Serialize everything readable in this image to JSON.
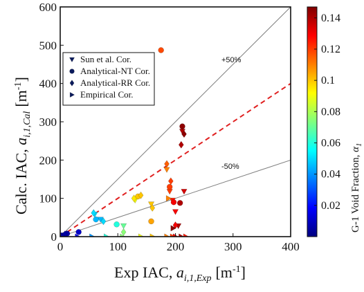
{
  "chart_data": {
    "type": "scatter",
    "xlabel": "Exp IAC,",
    "xlabel_var": "a",
    "xlabel_sub": "i,1,Exp",
    "xlabel_unit_open": "[m",
    "xlabel_unit_exp": "-1",
    "xlabel_unit_close": "]",
    "ylabel": "Calc. IAC,",
    "ylabel_var": "a",
    "ylabel_sub": "i,1,Cal",
    "ylabel_unit_open": "[m",
    "ylabel_unit_exp": "-1",
    "ylabel_unit_close": "]",
    "xlim": [
      0,
      400
    ],
    "ylim": [
      0,
      600
    ],
    "xticks": [
      "0",
      "100",
      "200",
      "300",
      "400"
    ],
    "yticks": [
      "0",
      "100",
      "200",
      "300",
      "400",
      "500",
      "600"
    ],
    "colorbar": {
      "label": "G-1 Void Fraction,",
      "label_var": "α",
      "label_sub": "1",
      "range": [
        0,
        0.147
      ],
      "ticks": [
        "0.02",
        "0.04",
        "0.06",
        "0.08",
        "0.1",
        "0.12",
        "0.14"
      ],
      "colormap": [
        "#00007f",
        "#0000ff",
        "#007fff",
        "#00ffff",
        "#7fff7f",
        "#ffff00",
        "#ff7f00",
        "#ff0000",
        "#7f0000"
      ]
    },
    "reference_lines": [
      {
        "label": "+50%",
        "slope": 1.5,
        "color": "#808080",
        "style": "solid"
      },
      {
        "label": "",
        "slope": 1.0,
        "color": "#e02020",
        "style": "dashed"
      },
      {
        "label": "-50%",
        "slope": 0.5,
        "color": "#808080",
        "style": "solid"
      }
    ],
    "legend": {
      "placement": "upper-left",
      "entries": [
        {
          "label": "Sun et al. Cor.",
          "marker": "triangle-down"
        },
        {
          "label": "Analytical-NT Cor.",
          "marker": "circle"
        },
        {
          "label": "Analytical-RR Cor.",
          "marker": "diamond"
        },
        {
          "label": "Empirical Cor.",
          "marker": "triangle-right"
        }
      ]
    },
    "series": [
      {
        "marker": "triangle-down",
        "points": [
          {
            "x": 5,
            "y": 4,
            "c": 0.005
          },
          {
            "x": 10,
            "y": 5,
            "c": 0.01
          },
          {
            "x": 60,
            "y": 58,
            "c": 0.05
          },
          {
            "x": 70,
            "y": 45,
            "c": 0.045
          },
          {
            "x": 110,
            "y": 28,
            "c": 0.07
          },
          {
            "x": 130,
            "y": 95,
            "c": 0.09
          },
          {
            "x": 158,
            "y": 85,
            "c": 0.1
          },
          {
            "x": 185,
            "y": 175,
            "c": 0.11
          },
          {
            "x": 190,
            "y": 118,
            "c": 0.12
          },
          {
            "x": 195,
            "y": 95,
            "c": 0.125
          },
          {
            "x": 200,
            "y": 65,
            "c": 0.13
          },
          {
            "x": 205,
            "y": 28,
            "c": 0.14
          },
          {
            "x": 215,
            "y": 118,
            "c": 0.135
          },
          {
            "x": 212,
            "y": 275,
            "c": 0.14
          }
        ]
      },
      {
        "marker": "circle",
        "points": [
          {
            "x": 12,
            "y": 8,
            "c": 0.005
          },
          {
            "x": 32,
            "y": 12,
            "c": 0.01
          },
          {
            "x": 62,
            "y": 45,
            "c": 0.045
          },
          {
            "x": 98,
            "y": 32,
            "c": 0.06
          },
          {
            "x": 135,
            "y": 105,
            "c": 0.1
          },
          {
            "x": 158,
            "y": 40,
            "c": 0.105
          },
          {
            "x": 175,
            "y": 487,
            "c": 0.118
          },
          {
            "x": 190,
            "y": 130,
            "c": 0.12
          },
          {
            "x": 197,
            "y": 90,
            "c": 0.13
          },
          {
            "x": 208,
            "y": 88,
            "c": 0.14
          },
          {
            "x": 212,
            "y": 288,
            "c": 0.145
          }
        ]
      },
      {
        "marker": "diamond",
        "points": [
          {
            "x": 8,
            "y": 6,
            "c": 0.005
          },
          {
            "x": 58,
            "y": 62,
            "c": 0.05
          },
          {
            "x": 75,
            "y": 40,
            "c": 0.05
          },
          {
            "x": 110,
            "y": 12,
            "c": 0.075
          },
          {
            "x": 128,
            "y": 100,
            "c": 0.095
          },
          {
            "x": 140,
            "y": 108,
            "c": 0.1
          },
          {
            "x": 160,
            "y": 75,
            "c": 0.1
          },
          {
            "x": 185,
            "y": 190,
            "c": 0.115
          },
          {
            "x": 192,
            "y": 145,
            "c": 0.12
          },
          {
            "x": 200,
            "y": 30,
            "c": 0.13
          },
          {
            "x": 210,
            "y": 240,
            "c": 0.14
          },
          {
            "x": 215,
            "y": 268,
            "c": 0.145
          }
        ]
      },
      {
        "marker": "triangle-right",
        "points": [
          {
            "x": 5,
            "y": 0,
            "c": 0.005
          },
          {
            "x": 30,
            "y": 0,
            "c": 0.015
          },
          {
            "x": 55,
            "y": 0,
            "c": 0.04
          },
          {
            "x": 80,
            "y": 0,
            "c": 0.06
          },
          {
            "x": 108,
            "y": 0,
            "c": 0.075
          },
          {
            "x": 140,
            "y": 0,
            "c": 0.09
          },
          {
            "x": 160,
            "y": 0,
            "c": 0.1
          },
          {
            "x": 185,
            "y": 0,
            "c": 0.11
          },
          {
            "x": 195,
            "y": 0,
            "c": 0.12
          },
          {
            "x": 200,
            "y": 0,
            "c": 0.13
          },
          {
            "x": 210,
            "y": 0,
            "c": 0.14
          },
          {
            "x": 218,
            "y": 0,
            "c": 0.125
          },
          {
            "x": 188,
            "y": 100,
            "c": 0.11
          },
          {
            "x": 196,
            "y": 22,
            "c": 0.145
          }
        ]
      }
    ]
  }
}
